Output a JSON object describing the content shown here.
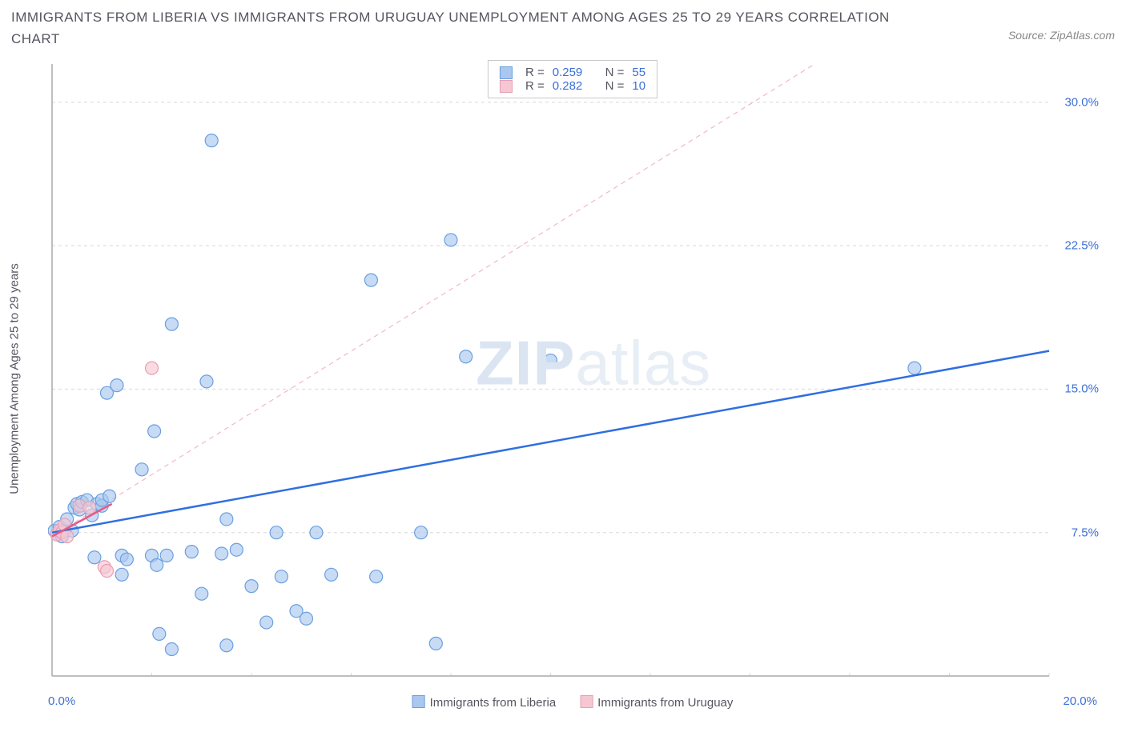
{
  "title": "IMMIGRANTS FROM LIBERIA VS IMMIGRANTS FROM URUGUAY UNEMPLOYMENT AMONG AGES 25 TO 29 YEARS CORRELATION CHART",
  "source": "Source: ZipAtlas.com",
  "ylabel": "Unemployment Among Ages 25 to 29 years",
  "watermark_a": "ZIP",
  "watermark_b": "atlas",
  "chart": {
    "type": "scatter",
    "xlim": [
      0,
      20
    ],
    "ylim": [
      0,
      32
    ],
    "yticks": [
      7.5,
      15.0,
      22.5,
      30.0
    ],
    "ytick_labels": [
      "7.5%",
      "15.0%",
      "22.5%",
      "30.0%"
    ],
    "xticks_label_left": "0.0%",
    "xticks_label_right": "20.0%",
    "xtick_positions": [
      0,
      2,
      4,
      6,
      8,
      10,
      12,
      14,
      16,
      18,
      20
    ],
    "background": "#ffffff",
    "grid_color": "#d8d8d8",
    "series": [
      {
        "name": "Immigrants from Liberia",
        "fill": "#a9c7ef",
        "stroke": "#6a9fe0",
        "marker_r": 8,
        "fill_opacity": 0.65,
        "R": "0.259",
        "N": "55",
        "trend": {
          "x1": 0,
          "y1": 7.5,
          "x2": 20,
          "y2": 17.0,
          "color": "#2f6fe0",
          "width": 2.5,
          "dash": ""
        },
        "guide": {
          "x1": 0,
          "y1": 7.3,
          "x2": 15.3,
          "y2": 32,
          "color": "#f2b8c6",
          "width": 1.2,
          "dash": "6 5"
        },
        "points": [
          [
            0.05,
            7.6
          ],
          [
            0.1,
            7.4
          ],
          [
            0.15,
            7.8
          ],
          [
            0.2,
            7.3
          ],
          [
            0.25,
            7.6
          ],
          [
            0.3,
            8.2
          ],
          [
            0.4,
            7.6
          ],
          [
            0.45,
            8.8
          ],
          [
            0.5,
            9.0
          ],
          [
            0.55,
            8.7
          ],
          [
            0.6,
            9.1
          ],
          [
            0.7,
            9.2
          ],
          [
            0.8,
            8.4
          ],
          [
            0.9,
            9.0
          ],
          [
            0.85,
            6.2
          ],
          [
            1.0,
            8.9
          ],
          [
            1.0,
            9.2
          ],
          [
            1.1,
            14.8
          ],
          [
            1.15,
            9.4
          ],
          [
            1.3,
            15.2
          ],
          [
            1.4,
            5.3
          ],
          [
            1.4,
            6.3
          ],
          [
            1.5,
            6.1
          ],
          [
            1.8,
            10.8
          ],
          [
            2.0,
            6.3
          ],
          [
            2.05,
            12.8
          ],
          [
            2.1,
            5.8
          ],
          [
            2.15,
            2.2
          ],
          [
            2.3,
            6.3
          ],
          [
            2.4,
            1.4
          ],
          [
            2.4,
            18.4
          ],
          [
            2.8,
            6.5
          ],
          [
            3.0,
            4.3
          ],
          [
            3.1,
            15.4
          ],
          [
            3.2,
            28.0
          ],
          [
            3.4,
            6.4
          ],
          [
            3.5,
            1.6
          ],
          [
            3.5,
            8.2
          ],
          [
            3.7,
            6.6
          ],
          [
            4.0,
            4.7
          ],
          [
            4.3,
            2.8
          ],
          [
            4.5,
            7.5
          ],
          [
            4.6,
            5.2
          ],
          [
            4.9,
            3.4
          ],
          [
            5.1,
            3.0
          ],
          [
            5.3,
            7.5
          ],
          [
            5.6,
            5.3
          ],
          [
            6.4,
            20.7
          ],
          [
            6.5,
            5.2
          ],
          [
            7.4,
            7.5
          ],
          [
            7.7,
            1.7
          ],
          [
            8.0,
            22.8
          ],
          [
            8.3,
            16.7
          ],
          [
            10.0,
            16.5
          ],
          [
            17.3,
            16.1
          ]
        ]
      },
      {
        "name": "Immigrants from Uruguay",
        "fill": "#f6c7d2",
        "stroke": "#e89fb3",
        "marker_r": 8,
        "fill_opacity": 0.65,
        "R": "0.282",
        "N": "10",
        "trend": {
          "x1": 0,
          "y1": 7.3,
          "x2": 1.2,
          "y2": 9.0,
          "color": "#e65a84",
          "width": 2.5,
          "dash": ""
        },
        "points": [
          [
            0.1,
            7.4
          ],
          [
            0.15,
            7.6
          ],
          [
            0.2,
            7.5
          ],
          [
            0.25,
            7.9
          ],
          [
            0.3,
            7.3
          ],
          [
            0.55,
            8.9
          ],
          [
            0.75,
            8.8
          ],
          [
            1.05,
            5.7
          ],
          [
            1.1,
            5.5
          ],
          [
            2.0,
            16.1
          ]
        ]
      }
    ]
  },
  "legend": {
    "liberia": "Immigrants from Liberia",
    "uruguay": "Immigrants from Uruguay"
  },
  "stats_labels": {
    "R": "R =",
    "N": "N ="
  }
}
